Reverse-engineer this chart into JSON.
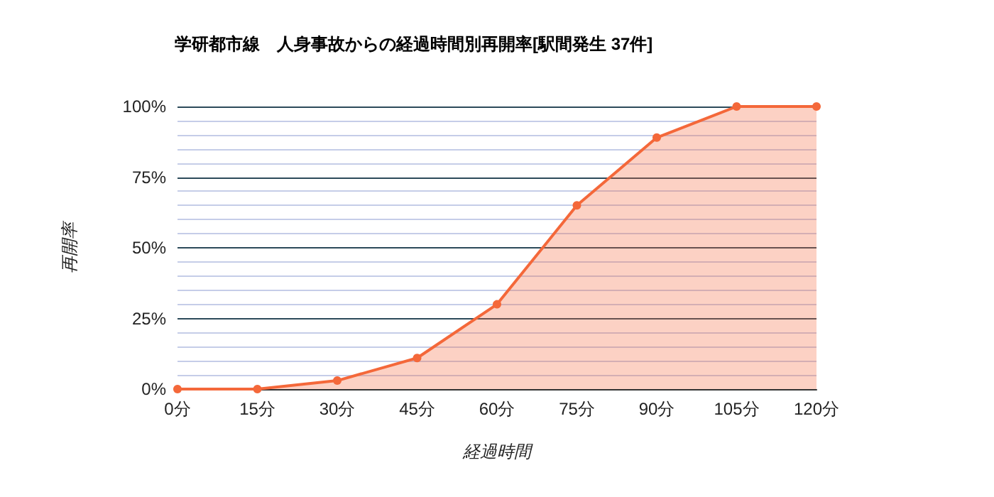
{
  "chart_data": {
    "type": "area",
    "title": "学研都市線　人身事故からの経過時間別再開率[駅間発生 37件]",
    "categories": [
      "0分",
      "15分",
      "30分",
      "45分",
      "60分",
      "75分",
      "90分",
      "105分",
      "120分"
    ],
    "series": [
      {
        "color": "#f4683a",
        "values": [
          0,
          0,
          3,
          11,
          30,
          65,
          89,
          100,
          100
        ]
      }
    ],
    "xlabel": "経過時間",
    "ylabel": "再開率",
    "ylim": [
      0,
      100
    ],
    "yticks": [
      {
        "value": 0,
        "label": "0%"
      },
      {
        "value": 25,
        "label": "25%"
      },
      {
        "value": 50,
        "label": "50%"
      },
      {
        "value": 75,
        "label": "75%"
      },
      {
        "value": 100,
        "label": "100%"
      }
    ],
    "grid": true,
    "marker": "circle",
    "line_style": "solid"
  }
}
